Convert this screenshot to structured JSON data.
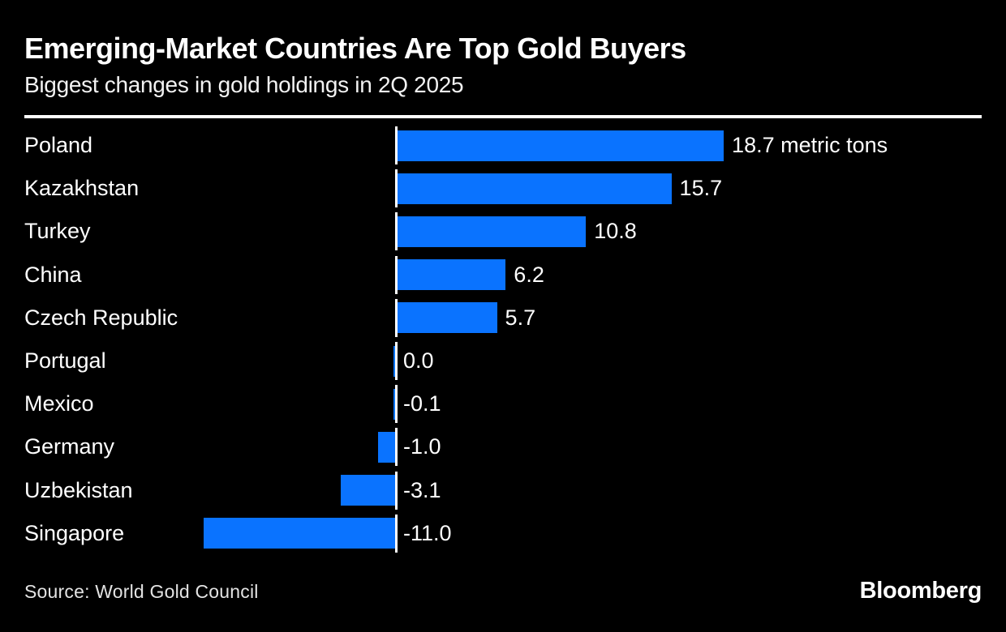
{
  "title": "Emerging-Market Countries Are Top Gold Buyers",
  "subtitle": "Biggest changes in gold holdings in 2Q 2025",
  "source": "Source: World Gold Council",
  "brand": "Bloomberg",
  "colors": {
    "background": "#000000",
    "bar": "#0a73ff",
    "text": "#ffffff",
    "rule": "#ffffff"
  },
  "chart_data": {
    "type": "bar",
    "orientation": "horizontal",
    "title": "Emerging-Market Countries Are Top Gold Buyers",
    "subtitle": "Biggest changes in gold holdings in 2Q 2025",
    "unit": "metric tons",
    "categories": [
      "Poland",
      "Kazakhstan",
      "Turkey",
      "China",
      "Czech Republic",
      "Portugal",
      "Mexico",
      "Germany",
      "Uzbekistan",
      "Singapore"
    ],
    "values": [
      18.7,
      15.7,
      10.8,
      6.2,
      5.7,
      0.0,
      -0.1,
      -1.0,
      -3.1,
      -11.0
    ],
    "value_labels": [
      "18.7 metric tons",
      "15.7",
      "10.8",
      "6.2",
      "5.7",
      "0.0",
      "-0.1",
      "-1.0",
      "-3.1",
      "-11.0"
    ],
    "xlim": [
      -11.0,
      18.7
    ],
    "grid": false,
    "legend": false,
    "zero_baseline": true
  }
}
